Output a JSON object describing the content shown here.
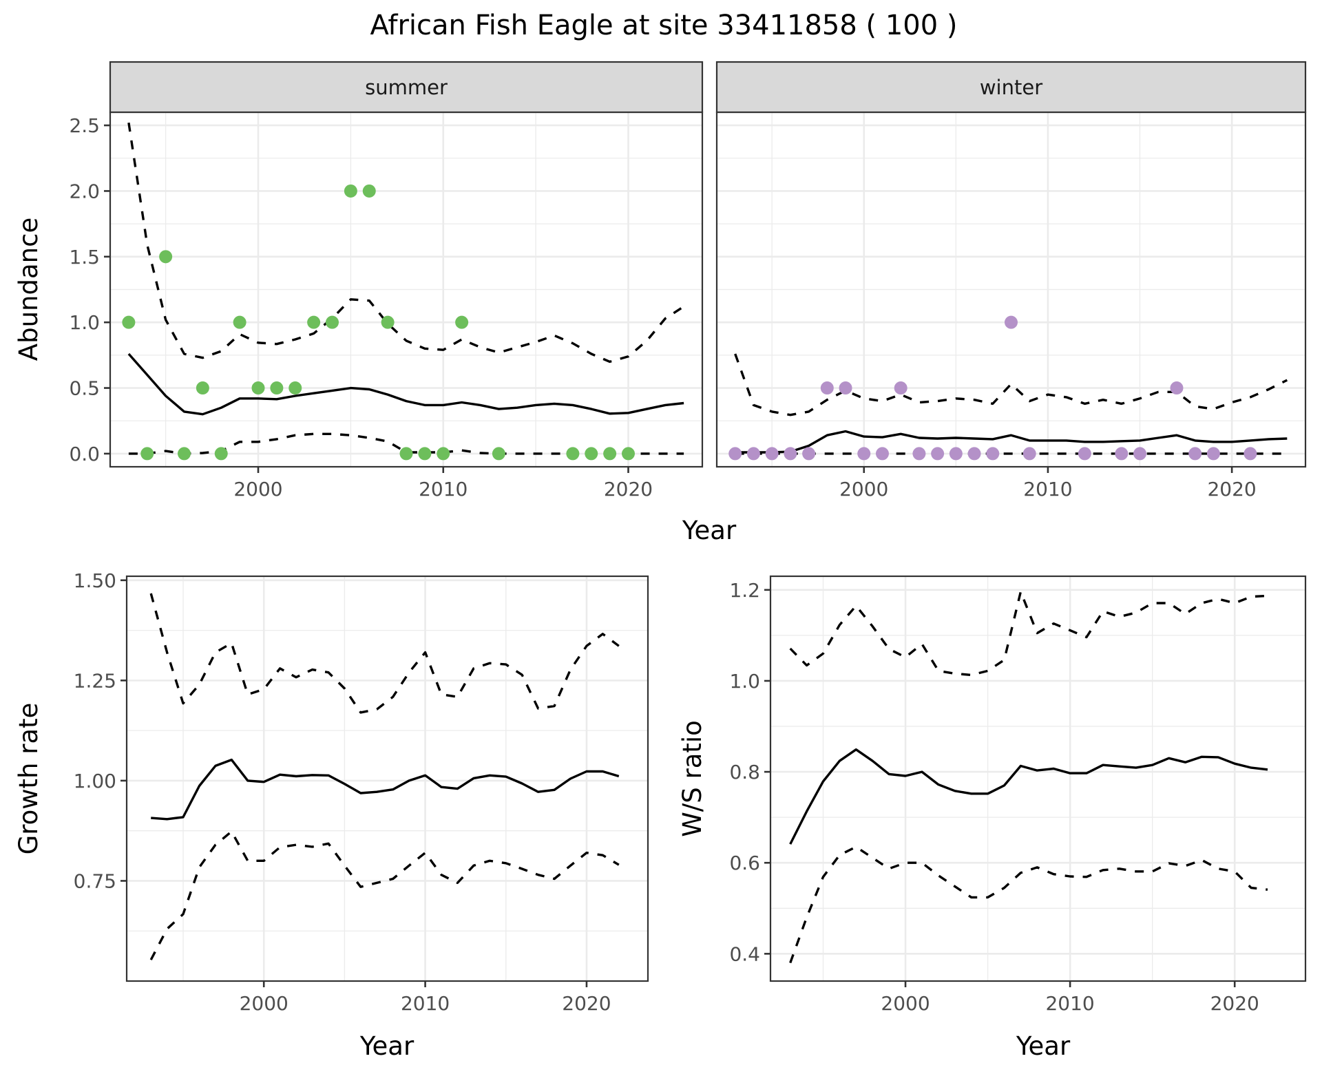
{
  "chart_data": [
    {
      "id": "abundance",
      "type": "line",
      "title": "African Fish Eagle at site 33411858 ( 100 )",
      "xlabel": "Year",
      "ylabel": "Abundance",
      "xlim": [
        1992,
        2024
      ],
      "ylim": [
        -0.1,
        2.6
      ],
      "xticks": [
        2000,
        2010,
        2020
      ],
      "xtick_labels": [
        "2000",
        "2010",
        "2020"
      ],
      "yticks": [
        0.0,
        0.5,
        1.0,
        1.5,
        2.0,
        2.5
      ],
      "ytick_labels": [
        "0.0",
        "0.5",
        "1.0",
        "1.5",
        "2.0",
        "2.5"
      ],
      "grid": true,
      "facets": [
        {
          "label": "summer",
          "point_color": "#6dbe5b",
          "points": {
            "x": [
              1993,
              1994,
              1995,
              1996,
              1997,
              1998,
              1999,
              2000,
              2001,
              2002,
              2003,
              2004,
              2005,
              2006,
              2007,
              2008,
              2009,
              2010,
              2011,
              2013,
              2017,
              2018,
              2019,
              2020
            ],
            "y": [
              1.0,
              0,
              1.5,
              0,
              0.5,
              0,
              1.0,
              0.5,
              0.5,
              0.5,
              1.0,
              1.0,
              2.0,
              2.0,
              1.0,
              0,
              0,
              0,
              1.0,
              0,
              0,
              0,
              0,
              0
            ]
          },
          "years": [
            1993,
            1994,
            1995,
            1996,
            1997,
            1998,
            1999,
            2000,
            2001,
            2002,
            2003,
            2004,
            2005,
            2006,
            2007,
            2008,
            2009,
            2010,
            2011,
            2012,
            2013,
            2014,
            2015,
            2016,
            2017,
            2018,
            2019,
            2020,
            2021,
            2022,
            2023
          ],
          "series": [
            {
              "name": "mean",
              "style": "solid",
              "values": [
                0.76,
                0.6,
                0.44,
                0.32,
                0.3,
                0.35,
                0.42,
                0.42,
                0.415,
                0.44,
                0.46,
                0.48,
                0.5,
                0.49,
                0.45,
                0.4,
                0.37,
                0.37,
                0.39,
                0.37,
                0.34,
                0.35,
                0.37,
                0.38,
                0.37,
                0.34,
                0.305,
                0.31,
                0.34,
                0.37,
                0.385
              ]
            },
            {
              "name": "upper",
              "style": "dashed",
              "values": [
                2.52,
                1.59,
                1.02,
                0.76,
                0.73,
                0.78,
                0.91,
                0.845,
                0.835,
                0.87,
                0.915,
                1.03,
                1.175,
                1.165,
                0.99,
                0.86,
                0.8,
                0.79,
                0.87,
                0.81,
                0.77,
                0.81,
                0.85,
                0.9,
                0.84,
                0.76,
                0.7,
                0.74,
                0.86,
                1.03,
                1.12
              ]
            },
            {
              "name": "lower",
              "style": "dashed",
              "values": [
                0,
                0,
                0.02,
                0,
                0.005,
                0.02,
                0.09,
                0.09,
                0.11,
                0.14,
                0.15,
                0.15,
                0.14,
                0.12,
                0.093,
                0.01,
                0.01,
                0.01,
                0.025,
                0.005,
                0,
                0,
                0,
                0,
                0,
                0,
                0,
                0,
                0,
                0,
                0
              ]
            }
          ]
        },
        {
          "label": "winter",
          "point_color": "#b491c8",
          "points": {
            "x": [
              1993,
              1994,
              1995,
              1996,
              1997,
              1998,
              1999,
              2000,
              2001,
              2002,
              2003,
              2004,
              2005,
              2006,
              2007,
              2008,
              2009,
              2012,
              2014,
              2015,
              2017,
              2018,
              2019,
              2021
            ],
            "y": [
              0,
              0,
              0,
              0,
              0,
              0.5,
              0.5,
              0,
              0,
              0.5,
              0,
              0,
              0,
              0,
              0,
              1.0,
              0,
              0,
              0,
              0,
              0.5,
              0,
              0,
              0
            ]
          },
          "years": [
            1993,
            1994,
            1995,
            1996,
            1997,
            1998,
            1999,
            2000,
            2001,
            2002,
            2003,
            2004,
            2005,
            2006,
            2007,
            2008,
            2009,
            2010,
            2011,
            2012,
            2013,
            2014,
            2015,
            2016,
            2017,
            2018,
            2019,
            2020,
            2021,
            2022,
            2023
          ],
          "series": [
            {
              "name": "mean",
              "style": "solid",
              "values": [
                0.01,
                0.01,
                0.01,
                0.015,
                0.06,
                0.14,
                0.17,
                0.13,
                0.125,
                0.15,
                0.12,
                0.115,
                0.12,
                0.115,
                0.11,
                0.14,
                0.1,
                0.1,
                0.1,
                0.09,
                0.09,
                0.095,
                0.1,
                0.12,
                0.14,
                0.1,
                0.09,
                0.09,
                0.1,
                0.11,
                0.115
              ]
            },
            {
              "name": "upper",
              "style": "dashed",
              "values": [
                0.76,
                0.37,
                0.32,
                0.295,
                0.32,
                0.41,
                0.48,
                0.42,
                0.4,
                0.45,
                0.39,
                0.4,
                0.42,
                0.41,
                0.38,
                0.53,
                0.4,
                0.45,
                0.43,
                0.38,
                0.41,
                0.38,
                0.42,
                0.47,
                0.47,
                0.36,
                0.34,
                0.39,
                0.43,
                0.49,
                0.56
              ]
            },
            {
              "name": "lower",
              "style": "dashed",
              "values": [
                0,
                0,
                0,
                0,
                0,
                0,
                0,
                0,
                0,
                0,
                0,
                0,
                0,
                0,
                0,
                0,
                0,
                0,
                0,
                0,
                0,
                0,
                0,
                0,
                0,
                0,
                0,
                0,
                0,
                0,
                0
              ]
            }
          ]
        }
      ]
    },
    {
      "id": "growth",
      "type": "line",
      "xlabel": "Year",
      "ylabel": "Growth rate",
      "xlim": [
        1991.5,
        2023.8
      ],
      "ylim": [
        0.5,
        1.51
      ],
      "xticks": [
        2000,
        2010,
        2020
      ],
      "xtick_labels": [
        "2000",
        "2010",
        "2020"
      ],
      "yticks": [
        0.75,
        1.0,
        1.25,
        1.5
      ],
      "ytick_labels": [
        "0.75",
        "1.00",
        "1.25",
        "1.50"
      ],
      "grid": true,
      "years": [
        1993,
        1994,
        1995,
        1996,
        1997,
        1998,
        1999,
        2000,
        2001,
        2002,
        2003,
        2004,
        2005,
        2006,
        2007,
        2008,
        2009,
        2010,
        2011,
        2012,
        2013,
        2014,
        2015,
        2016,
        2017,
        2018,
        2019,
        2020,
        2021,
        2022
      ],
      "series": [
        {
          "name": "mean",
          "style": "solid",
          "values": [
            0.907,
            0.904,
            0.909,
            0.987,
            1.037,
            1.052,
            1.0,
            0.997,
            1.015,
            1.011,
            1.014,
            1.013,
            0.992,
            0.969,
            0.972,
            0.978,
            1.0,
            1.013,
            0.984,
            0.98,
            1.006,
            1.013,
            1.01,
            0.993,
            0.972,
            0.977,
            1.005,
            1.023,
            1.023,
            1.011
          ]
        },
        {
          "name": "upper",
          "style": "dashed",
          "values": [
            1.467,
            1.32,
            1.193,
            1.24,
            1.32,
            1.343,
            1.215,
            1.228,
            1.28,
            1.258,
            1.277,
            1.27,
            1.23,
            1.17,
            1.178,
            1.209,
            1.27,
            1.32,
            1.215,
            1.209,
            1.28,
            1.293,
            1.29,
            1.264,
            1.18,
            1.186,
            1.277,
            1.336,
            1.366,
            1.336
          ]
        },
        {
          "name": "lower",
          "style": "dashed",
          "values": [
            0.553,
            0.63,
            0.667,
            0.784,
            0.84,
            0.873,
            0.8,
            0.8,
            0.834,
            0.84,
            0.835,
            0.843,
            0.788,
            0.735,
            0.745,
            0.755,
            0.788,
            0.82,
            0.765,
            0.745,
            0.788,
            0.8,
            0.794,
            0.78,
            0.765,
            0.755,
            0.788,
            0.82,
            0.814,
            0.79
          ]
        }
      ]
    },
    {
      "id": "ws_ratio",
      "type": "line",
      "xlabel": "Year",
      "ylabel": "W/S ratio",
      "xlim": [
        1991.8,
        2024.3
      ],
      "ylim": [
        0.34,
        1.23
      ],
      "xticks": [
        2000,
        2010,
        2020
      ],
      "xtick_labels": [
        "2000",
        "2010",
        "2020"
      ],
      "yticks": [
        0.4,
        0.6,
        0.8,
        1.0,
        1.2
      ],
      "ytick_labels": [
        "0.4",
        "0.6",
        "0.8",
        "1.0",
        "1.2"
      ],
      "grid": true,
      "years": [
        1993,
        1994,
        1995,
        1996,
        1997,
        1998,
        1999,
        2000,
        2001,
        2002,
        2003,
        2004,
        2005,
        2006,
        2007,
        2008,
        2009,
        2010,
        2011,
        2012,
        2013,
        2014,
        2015,
        2016,
        2017,
        2018,
        2019,
        2020,
        2021,
        2022
      ],
      "series": [
        {
          "name": "mean",
          "style": "solid",
          "values": [
            0.641,
            0.713,
            0.779,
            0.824,
            0.849,
            0.824,
            0.795,
            0.791,
            0.8,
            0.772,
            0.758,
            0.752,
            0.752,
            0.77,
            0.813,
            0.803,
            0.807,
            0.797,
            0.797,
            0.815,
            0.812,
            0.809,
            0.815,
            0.83,
            0.821,
            0.833,
            0.832,
            0.818,
            0.809,
            0.805
          ]
        },
        {
          "name": "upper",
          "style": "dashed",
          "values": [
            1.071,
            1.034,
            1.06,
            1.123,
            1.165,
            1.12,
            1.07,
            1.052,
            1.081,
            1.022,
            1.016,
            1.013,
            1.022,
            1.046,
            1.196,
            1.105,
            1.126,
            1.111,
            1.096,
            1.153,
            1.141,
            1.15,
            1.171,
            1.171,
            1.147,
            1.171,
            1.18,
            1.171,
            1.185,
            1.187
          ]
        },
        {
          "name": "lower",
          "style": "dashed",
          "values": [
            0.38,
            0.48,
            0.569,
            0.617,
            0.635,
            0.611,
            0.587,
            0.6,
            0.6,
            0.572,
            0.548,
            0.524,
            0.524,
            0.545,
            0.578,
            0.59,
            0.575,
            0.57,
            0.569,
            0.584,
            0.587,
            0.581,
            0.581,
            0.599,
            0.593,
            0.606,
            0.587,
            0.581,
            0.545,
            0.541
          ]
        }
      ]
    }
  ]
}
